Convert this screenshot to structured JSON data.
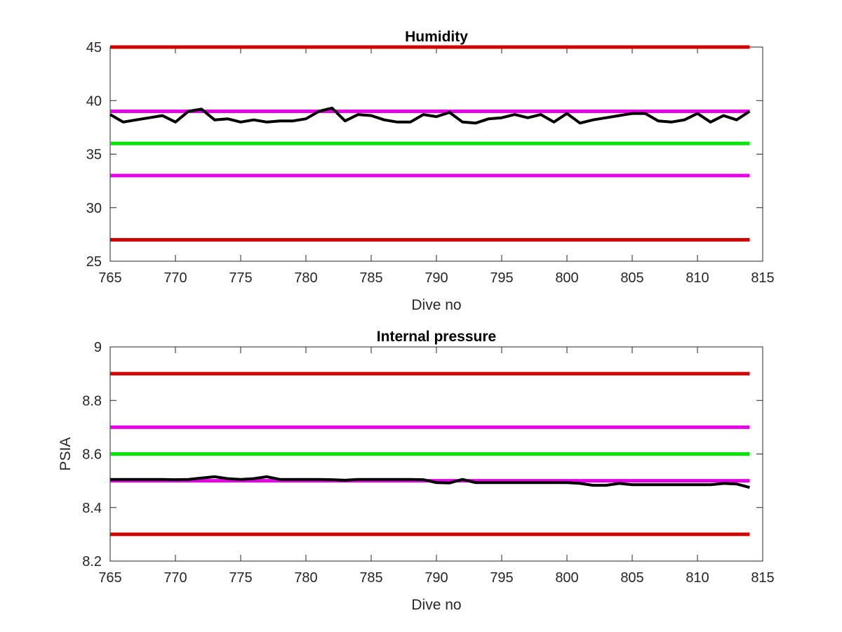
{
  "chart_data": [
    {
      "type": "line",
      "title": "Humidity",
      "xlabel": "Dive no",
      "ylabel": "",
      "xlim": [
        765,
        815
      ],
      "ylim": [
        25,
        45
      ],
      "xticks": [
        "765",
        "770",
        "775",
        "780",
        "785",
        "790",
        "795",
        "800",
        "805",
        "810",
        "815"
      ],
      "yticks": [
        "25",
        "30",
        "35",
        "40",
        "45"
      ],
      "grid": false,
      "limit_lines": [
        {
          "y": 45,
          "color": "#d00000"
        },
        {
          "y": 39,
          "color": "#e600e6"
        },
        {
          "y": 36,
          "color": "#00e600"
        },
        {
          "y": 33,
          "color": "#e600e6"
        },
        {
          "y": 27,
          "color": "#d00000"
        }
      ],
      "series": [
        {
          "color": "#000000",
          "x": [
            765,
            766,
            767,
            768,
            769,
            770,
            771,
            772,
            773,
            774,
            775,
            776,
            777,
            778,
            779,
            780,
            781,
            782,
            783,
            784,
            785,
            786,
            787,
            788,
            789,
            790,
            791,
            792,
            793,
            794,
            795,
            796,
            797,
            798,
            799,
            800,
            801,
            802,
            803,
            804,
            805,
            806,
            807,
            808,
            809,
            810,
            811,
            812,
            813,
            814
          ],
          "y": [
            38.7,
            38.0,
            38.2,
            38.4,
            38.6,
            38.0,
            39.0,
            39.2,
            38.2,
            38.3,
            38.0,
            38.2,
            38.0,
            38.1,
            38.1,
            38.3,
            39.0,
            39.3,
            38.1,
            38.7,
            38.6,
            38.2,
            38.0,
            38.0,
            38.7,
            38.5,
            38.9,
            38.0,
            37.9,
            38.3,
            38.4,
            38.7,
            38.4,
            38.7,
            38.0,
            38.8,
            37.9,
            38.2,
            38.4,
            38.6,
            38.8,
            38.8,
            38.1,
            38.0,
            38.2,
            38.8,
            38.0,
            38.6,
            38.2,
            39.0
          ]
        }
      ]
    },
    {
      "type": "line",
      "title": "Internal pressure",
      "xlabel": "Dive no",
      "ylabel": "PSIA",
      "xlim": [
        765,
        815
      ],
      "ylim": [
        8.2,
        9.0
      ],
      "xticks": [
        "765",
        "770",
        "775",
        "780",
        "785",
        "790",
        "795",
        "800",
        "805",
        "810",
        "815"
      ],
      "yticks": [
        "8.2",
        "8.4",
        "8.6",
        "8.8",
        "9"
      ],
      "grid": false,
      "limit_lines": [
        {
          "y": 8.9,
          "color": "#d00000"
        },
        {
          "y": 8.7,
          "color": "#e600e6"
        },
        {
          "y": 8.6,
          "color": "#00e600"
        },
        {
          "y": 8.5,
          "color": "#e600e6"
        },
        {
          "y": 8.3,
          "color": "#d00000"
        }
      ],
      "series": [
        {
          "color": "#000000",
          "x": [
            765,
            766,
            767,
            768,
            769,
            770,
            771,
            772,
            773,
            774,
            775,
            776,
            777,
            778,
            779,
            780,
            781,
            782,
            783,
            784,
            785,
            786,
            787,
            788,
            789,
            790,
            791,
            792,
            793,
            794,
            795,
            796,
            797,
            798,
            799,
            800,
            801,
            802,
            803,
            804,
            805,
            806,
            807,
            808,
            809,
            810,
            811,
            812,
            813,
            814
          ],
          "y": [
            8.505,
            8.505,
            8.505,
            8.505,
            8.505,
            8.504,
            8.505,
            8.51,
            8.515,
            8.508,
            8.505,
            8.508,
            8.515,
            8.505,
            8.505,
            8.505,
            8.505,
            8.504,
            8.502,
            8.505,
            8.505,
            8.505,
            8.505,
            8.505,
            8.504,
            8.493,
            8.492,
            8.505,
            8.493,
            8.493,
            8.493,
            8.493,
            8.493,
            8.493,
            8.493,
            8.493,
            8.49,
            8.483,
            8.483,
            8.49,
            8.485,
            8.485,
            8.485,
            8.485,
            8.485,
            8.485,
            8.485,
            8.49,
            8.488,
            8.475
          ]
        }
      ]
    }
  ]
}
